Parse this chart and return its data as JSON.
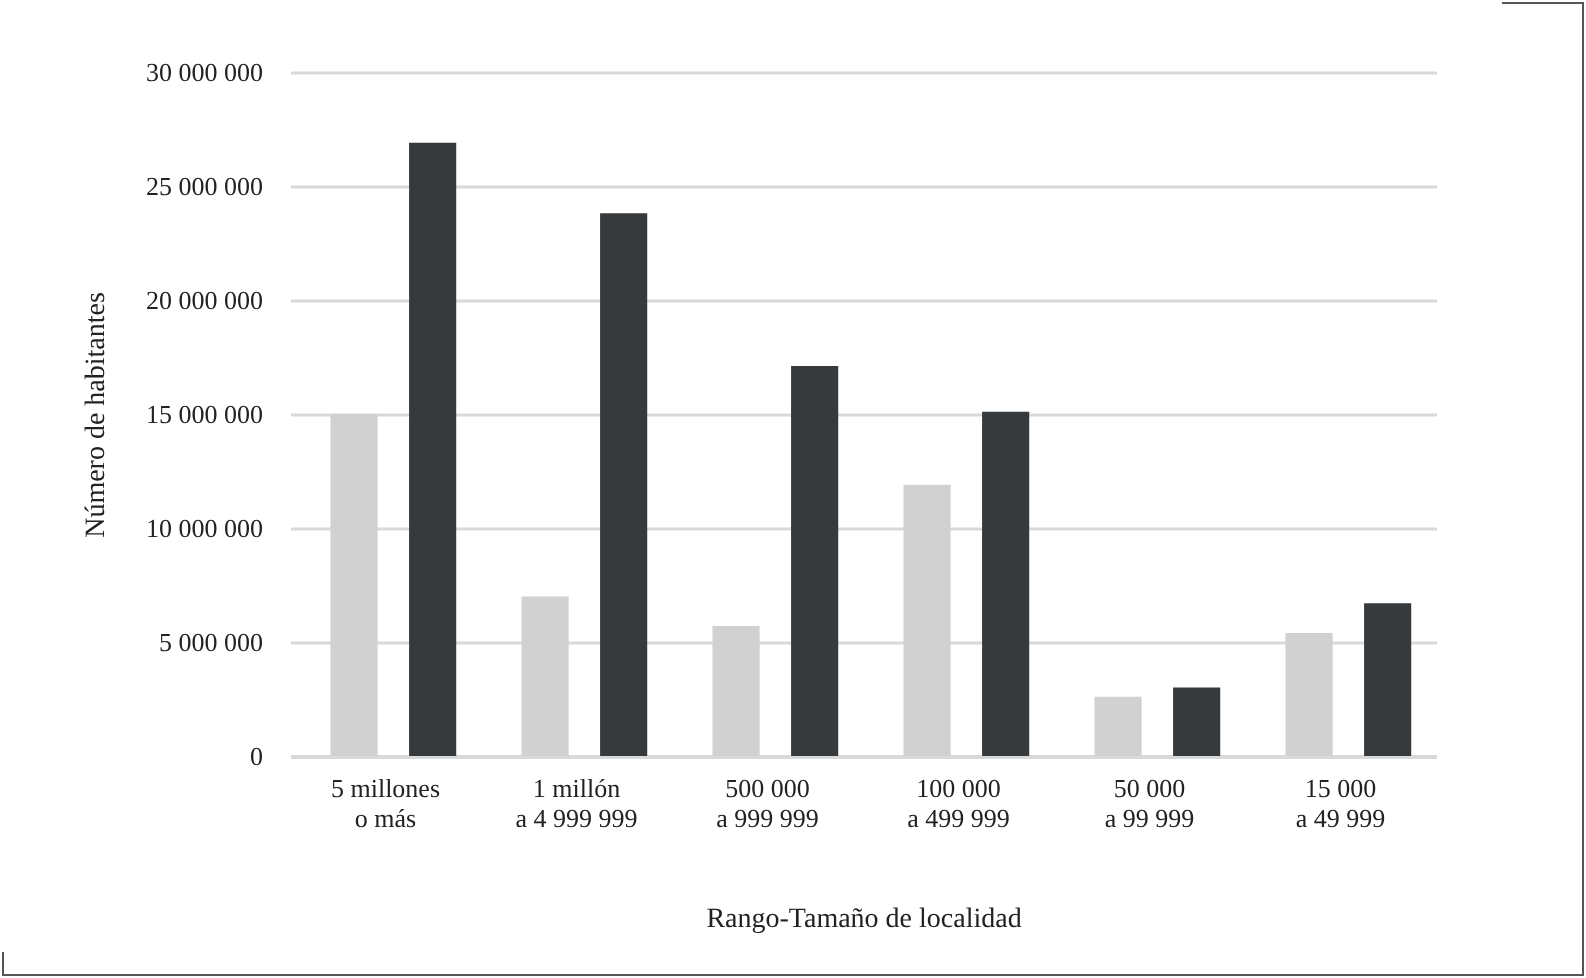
{
  "chart_data": {
    "type": "bar",
    "xlabel": "Rango-Tamaño de localidad",
    "ylabel": "Número de habitantes",
    "categories": [
      "5 millones\no más",
      "1 millón\na 4 999 999",
      "500 000\na 999 999",
      "100 000\na 499 999",
      "50 000\na 99 999",
      "15 000\na 49 999"
    ],
    "series": [
      {
        "color": "#d0d1d0",
        "values": [
          15000000,
          7000000,
          5700000,
          11900000,
          2600000,
          5400000
        ]
      },
      {
        "color": "#373a3d",
        "values": [
          26900000,
          23800000,
          17100000,
          15100000,
          3000000,
          6700000
        ]
      }
    ],
    "ylim": [
      0,
      30000000
    ],
    "yticks": [
      {
        "value": 0,
        "label": "0"
      },
      {
        "value": 5000000,
        "label": "5 000 000"
      },
      {
        "value": 10000000,
        "label": "10 000 000"
      },
      {
        "value": 15000000,
        "label": "15 000 000"
      },
      {
        "value": 20000000,
        "label": "20 000 000"
      },
      {
        "value": 25000000,
        "label": "25 000 000"
      },
      {
        "value": 30000000,
        "label": "30 000 000"
      }
    ],
    "grid": "y",
    "legend": false
  }
}
